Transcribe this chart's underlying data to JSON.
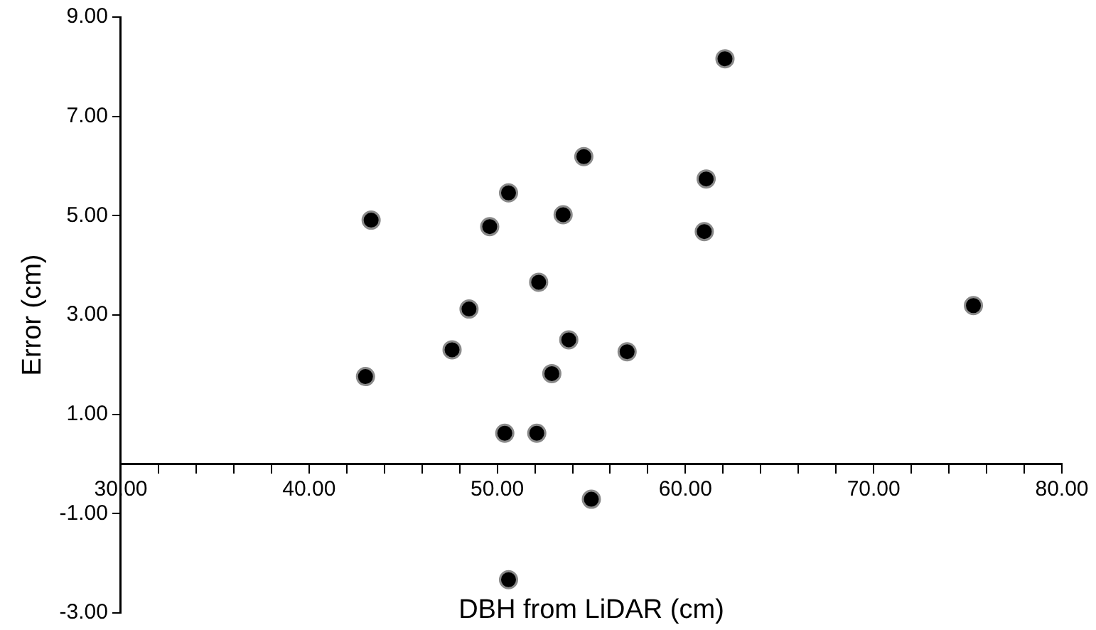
{
  "chart_data": {
    "type": "scatter",
    "xlabel": "DBH from LiDAR (cm)",
    "ylabel": "Error (cm)",
    "marker": "circle",
    "color": "#000000",
    "x": [
      43.3,
      43.0,
      47.6,
      48.5,
      49.6,
      50.6,
      50.4,
      52.1,
      52.2,
      52.9,
      53.5,
      53.8,
      54.6,
      55.0,
      50.6,
      56.9,
      61.1,
      61.0,
      62.1,
      75.3
    ],
    "values": [
      4.91,
      1.76,
      2.3,
      3.12,
      4.78,
      5.46,
      0.62,
      0.62,
      3.66,
      1.82,
      5.02,
      2.5,
      6.19,
      -0.71,
      -2.33,
      2.26,
      5.74,
      4.68,
      8.16,
      3.19
    ],
    "xlim": [
      30,
      80
    ],
    "xticks": [
      {
        "value": 30,
        "label": "30.00"
      },
      {
        "value": 32,
        "label": null
      },
      {
        "value": 34,
        "label": null
      },
      {
        "value": 36,
        "label": null
      },
      {
        "value": 38,
        "label": null
      },
      {
        "value": 40,
        "label": "40.00"
      },
      {
        "value": 42,
        "label": null
      },
      {
        "value": 44,
        "label": null
      },
      {
        "value": 46,
        "label": null
      },
      {
        "value": 48,
        "label": null
      },
      {
        "value": 50,
        "label": "50.00"
      },
      {
        "value": 52,
        "label": null
      },
      {
        "value": 54,
        "label": null
      },
      {
        "value": 56,
        "label": null
      },
      {
        "value": 58,
        "label": null
      },
      {
        "value": 60,
        "label": "60.00"
      },
      {
        "value": 62,
        "label": null
      },
      {
        "value": 64,
        "label": null
      },
      {
        "value": 66,
        "label": null
      },
      {
        "value": 68,
        "label": null
      },
      {
        "value": 70,
        "label": "70.00"
      },
      {
        "value": 72,
        "label": null
      },
      {
        "value": 74,
        "label": null
      },
      {
        "value": 76,
        "label": null
      },
      {
        "value": 78,
        "label": null
      },
      {
        "value": 80,
        "label": "80.00"
      }
    ],
    "ylim": [
      -3,
      9
    ],
    "yticks": [
      {
        "value": -3,
        "label": "-3.00"
      },
      {
        "value": -1,
        "label": "-1.00"
      },
      {
        "value": 1,
        "label": "1.00"
      },
      {
        "value": 3,
        "label": "3.00"
      },
      {
        "value": 5,
        "label": "5.00"
      },
      {
        "value": 7,
        "label": "7.00"
      },
      {
        "value": 9,
        "label": "9.00"
      }
    ]
  }
}
